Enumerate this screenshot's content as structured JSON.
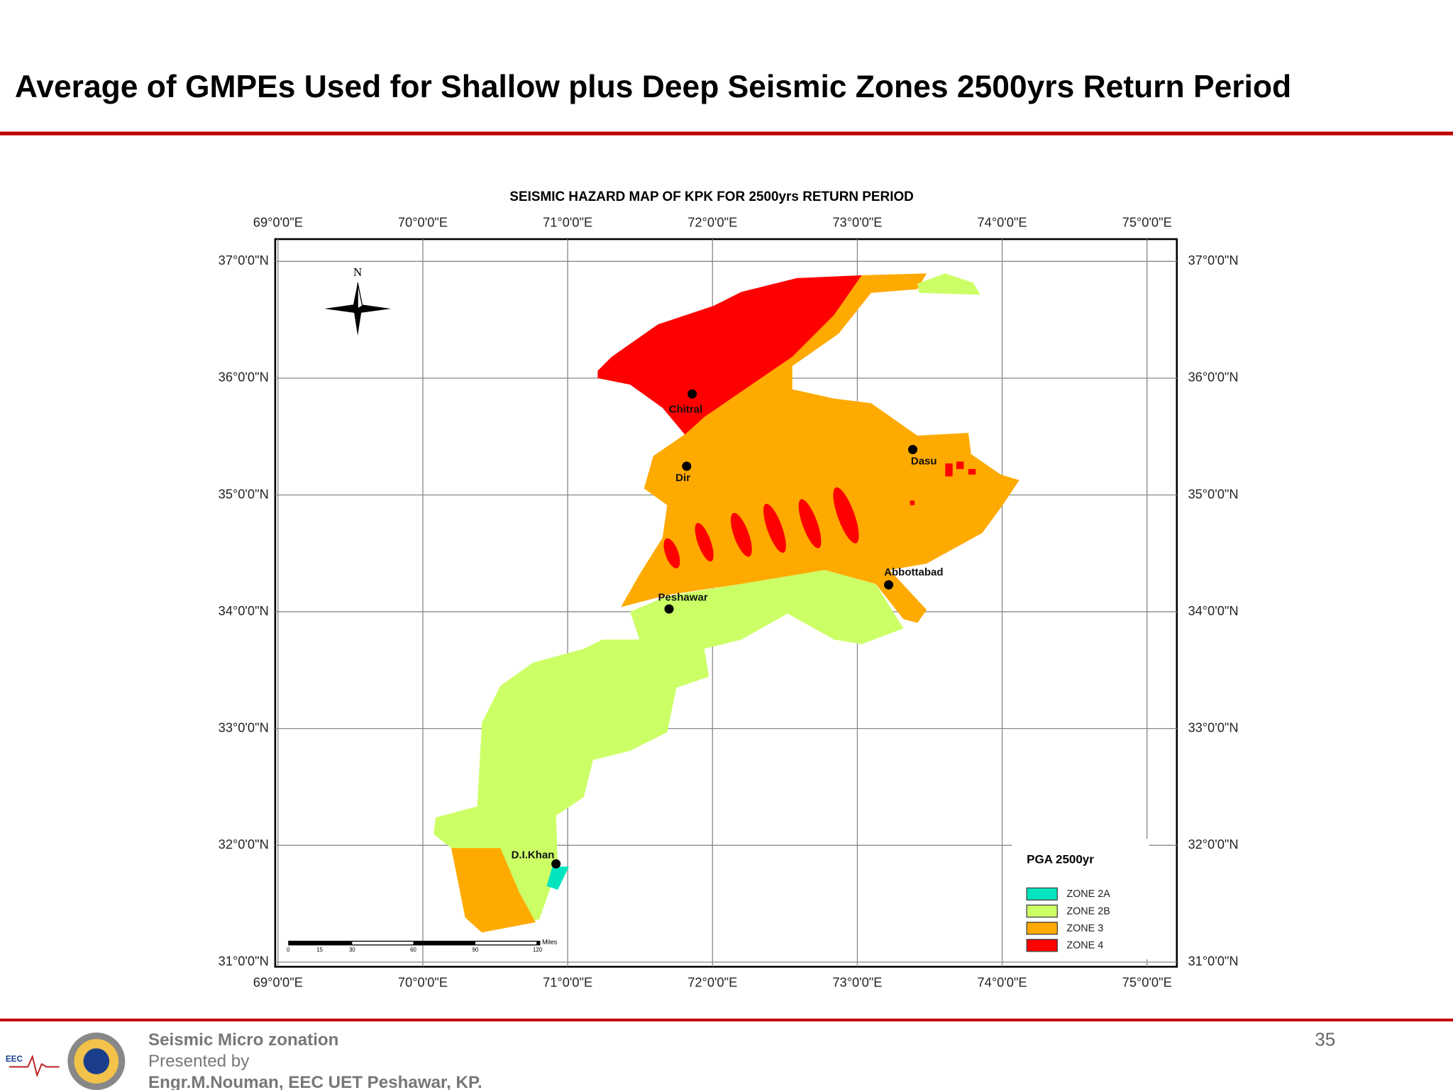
{
  "header": {
    "title": "Average of GMPEs Used for Shallow plus Deep Seismic Zones 2500yrs Return Period"
  },
  "map": {
    "title": "SEISMIC HAZARD MAP OF KPK FOR 2500yrs RETURN PERIOD",
    "lon_labels": [
      "69°0'0\"E",
      "70°0'0\"E",
      "71°0'0\"E",
      "72°0'0\"E",
      "73°0'0\"E",
      "74°0'0\"E",
      "75°0'0\"E"
    ],
    "lat_labels": [
      "37°0'0\"N",
      "36°0'0\"N",
      "35°0'0\"N",
      "34°0'0\"N",
      "33°0'0\"N",
      "32°0'0\"N",
      "31°0'0\"N"
    ],
    "north": "N",
    "cities": [
      {
        "label": "Chitral"
      },
      {
        "label": "Dir"
      },
      {
        "label": "Dasu"
      },
      {
        "label": "Abbottabad"
      },
      {
        "label": "Peshawar"
      },
      {
        "label": "D.I.Khan"
      }
    ],
    "scale_bar": {
      "ticks": [
        "0",
        "15",
        "30",
        "60",
        "90",
        "120"
      ],
      "unit": "Miles"
    },
    "legend": {
      "title": "PGA 2500yr",
      "items": [
        "ZONE 2A",
        "ZONE 2B",
        "ZONE 3",
        "ZONE 4"
      ]
    }
  },
  "footer": {
    "logo_text": "EEC",
    "lines": [
      "Seismic Micro zonation",
      "Presented by",
      "Engr.M.Nouman, EEC UET Peshawar, KP."
    ],
    "page_number": "35"
  }
}
